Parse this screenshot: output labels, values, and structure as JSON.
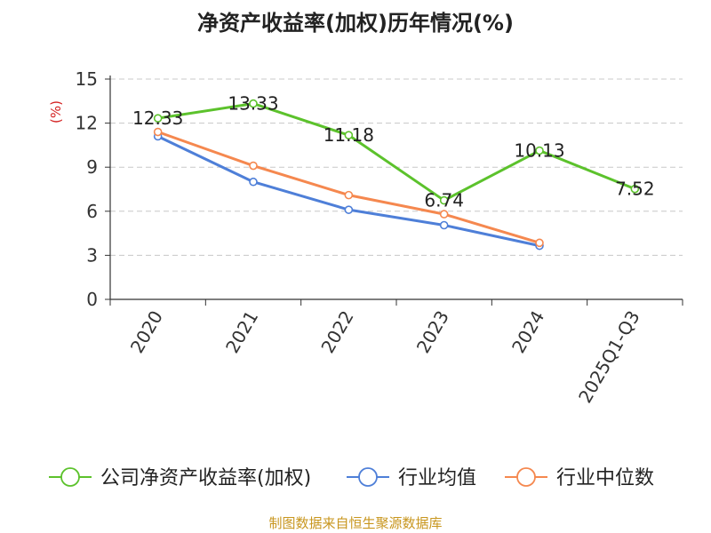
{
  "chart_data": {
    "type": "line",
    "title": "净资产收益率(加权)历年情况(%)",
    "ylabel": "(%)",
    "xlabel": "",
    "ylim": [
      0,
      15
    ],
    "yticks": [
      "0",
      "3",
      "6",
      "9",
      "12",
      "15"
    ],
    "categories": [
      "2020",
      "2021",
      "2022",
      "2023",
      "2024",
      "2025Q1-Q3"
    ],
    "grid": true,
    "legend_position": "bottom",
    "series": [
      {
        "name": "公司净资产收益率(加权)",
        "color": "#5cc22c",
        "values": [
          12.33,
          13.33,
          11.18,
          6.74,
          10.13,
          7.52
        ],
        "labels": [
          "12.33",
          "13.33",
          "11.18",
          "6.74",
          "10.13",
          "7.52"
        ]
      },
      {
        "name": "行业均值",
        "color": "#4e7fd8",
        "values": [
          11.1,
          8.0,
          6.1,
          5.05,
          3.65,
          null
        ]
      },
      {
        "name": "行业中位数",
        "color": "#f5884f",
        "values": [
          11.4,
          9.1,
          7.1,
          5.8,
          3.85,
          null
        ]
      }
    ]
  },
  "footer": {
    "source": "制图数据来自恒生聚源数据库"
  }
}
